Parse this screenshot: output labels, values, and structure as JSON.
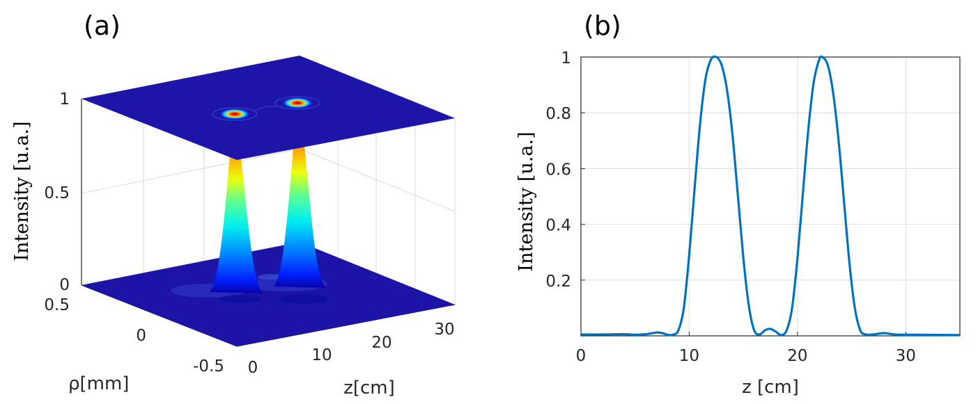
{
  "panel_a": {
    "label": "(a)",
    "chart_data": {
      "type": "surface3d",
      "z_axis_label": "Intensity [u.a.]",
      "z_ticks": [
        "0",
        "0.5",
        "1"
      ],
      "rho_axis_label": "ρ[mm]",
      "rho_ticks": [
        "0.5",
        "0",
        "-0.5"
      ],
      "x_axis_label": "z[cm]",
      "x_ticks": [
        "0",
        "10",
        "20",
        "30"
      ],
      "peaks": [
        {
          "z": 12.5,
          "rho": 0,
          "intensity": 1
        },
        {
          "z": 22.3,
          "rho": 0,
          "intensity": 1
        }
      ],
      "colormap": [
        "#00008f",
        "#0000ff",
        "#00ffff",
        "#ffff00",
        "#ff8000",
        "#ff0000",
        "#800000"
      ]
    }
  },
  "panel_b": {
    "label": "(b)",
    "chart_data": {
      "type": "line",
      "xlabel": "z [cm]",
      "ylabel": "Intensity [u.a.]",
      "xlim": [
        0,
        35
      ],
      "ylim": [
        0,
        1
      ],
      "x_ticks": [
        0,
        10,
        20,
        30
      ],
      "y_ticks": [
        0.2,
        0.4,
        0.6,
        0.8,
        1
      ],
      "grid": true,
      "line_color": "#0072bd",
      "series": [
        {
          "x": [
            0,
            2,
            4,
            5,
            6,
            7,
            7.5,
            8,
            8.5,
            9,
            9.5,
            10,
            10.5,
            11,
            11.5,
            12,
            12.5,
            13,
            13.5,
            14,
            14.5,
            15,
            15.5,
            16,
            16.5,
            17,
            17.5,
            18,
            18.5,
            19,
            19.5,
            20,
            20.5,
            21,
            21.5,
            22,
            22.3,
            22.8,
            23.3,
            23.8,
            24.3,
            24.8,
            25.3,
            25.8,
            26.3,
            27,
            28,
            29,
            31,
            35
          ],
          "y": [
            0.005,
            0.005,
            0.006,
            0.004,
            0.006,
            0.012,
            0.01,
            0.004,
            0.004,
            0.02,
            0.1,
            0.29,
            0.53,
            0.76,
            0.92,
            0.99,
            1.0,
            0.97,
            0.88,
            0.72,
            0.5,
            0.28,
            0.11,
            0.02,
            0.005,
            0.02,
            0.025,
            0.015,
            0.003,
            0.02,
            0.1,
            0.28,
            0.51,
            0.74,
            0.91,
            0.99,
            1.0,
            0.97,
            0.87,
            0.7,
            0.48,
            0.26,
            0.1,
            0.02,
            0.005,
            0.005,
            0.01,
            0.005,
            0.004,
            0.003
          ]
        }
      ]
    }
  }
}
